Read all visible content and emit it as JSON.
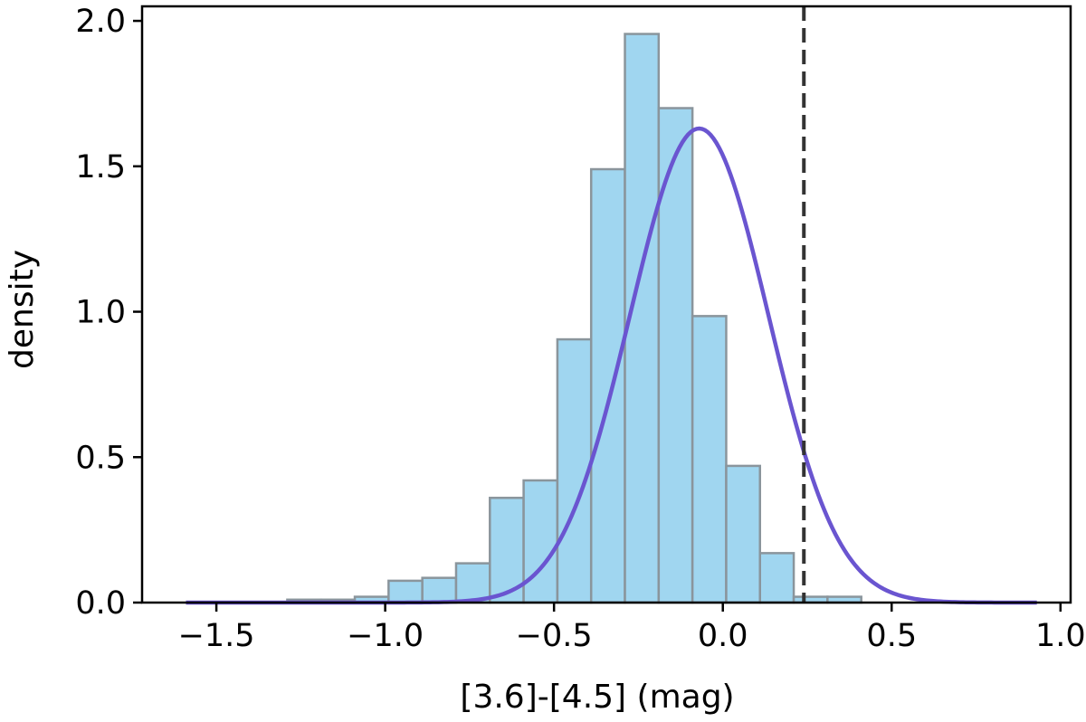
{
  "chart_data": {
    "type": "bar",
    "xlabel": "[3.6]-[4.5] (mag)",
    "ylabel": "density",
    "xlim": [
      -1.72,
      1.03
    ],
    "ylim": [
      0.0,
      2.05
    ],
    "xticks": [
      -1.5,
      -1.0,
      -0.5,
      0.0,
      0.5,
      1.0
    ],
    "xtick_labels": [
      "−1.5",
      "−1.0",
      "−0.5",
      "0.0",
      "0.5",
      "1.0"
    ],
    "yticks": [
      0.0,
      0.5,
      1.0,
      1.5,
      2.0
    ],
    "ytick_labels": [
      "0.0",
      "0.5",
      "1.0",
      "1.5",
      "2.0"
    ],
    "grid": false,
    "bins": {
      "edges": [
        -1.59,
        -1.49,
        -1.39,
        -1.29,
        -1.19,
        -1.09,
        -0.99,
        -0.89,
        -0.79,
        -0.69,
        -0.59,
        -0.49,
        -0.39,
        -0.29,
        -0.19,
        -0.09,
        0.01,
        0.11,
        0.21,
        0.31,
        0.41,
        0.51,
        0.61,
        0.71,
        0.81,
        0.91
      ],
      "density": [
        0.0,
        0.0,
        0.0,
        0.01,
        0.01,
        0.02,
        0.075,
        0.085,
        0.135,
        0.36,
        0.42,
        0.905,
        1.49,
        1.955,
        1.7,
        0.985,
        0.47,
        0.17,
        0.02,
        0.02,
        0.0,
        0.0,
        0.0,
        0.0,
        0.0
      ],
      "fill_color": "#a0d6f0",
      "edge_color": "#8a959c"
    },
    "fit_curve": {
      "type": "gaussian",
      "mean": -0.07,
      "sigma": 0.205,
      "peak": 1.63,
      "x_range": [
        -1.59,
        0.93
      ],
      "color": "#6a55d0"
    },
    "threshold_line": {
      "x": 0.24,
      "style": "dashed",
      "color": "#333333"
    }
  }
}
